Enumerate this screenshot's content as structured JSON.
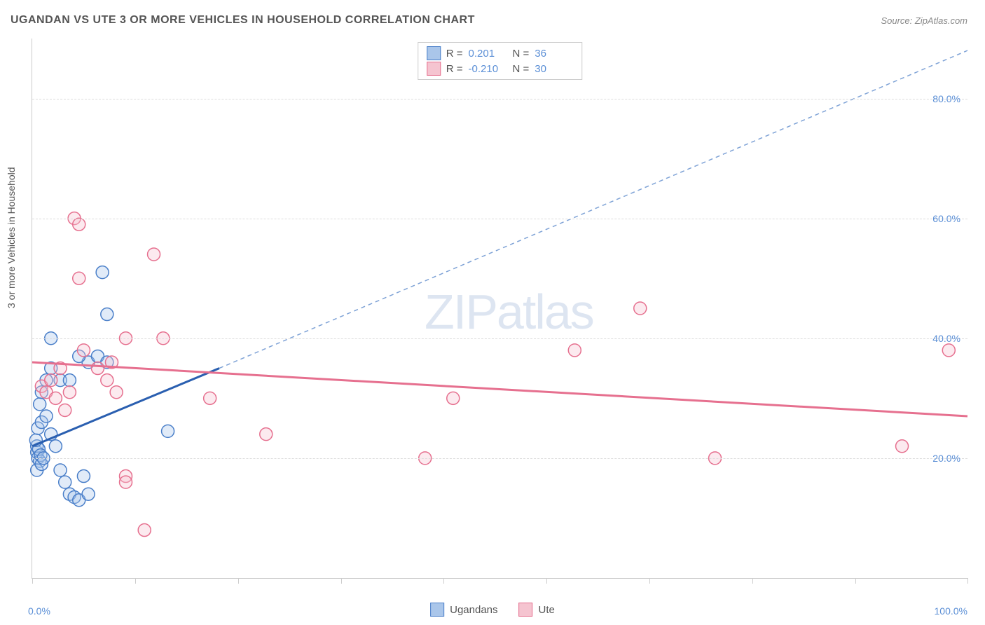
{
  "title": "UGANDAN VS UTE 3 OR MORE VEHICLES IN HOUSEHOLD CORRELATION CHART",
  "source": "Source: ZipAtlas.com",
  "y_axis_label": "3 or more Vehicles in Household",
  "watermark_a": "ZIP",
  "watermark_b": "atlas",
  "chart": {
    "type": "scatter",
    "background_color": "#ffffff",
    "grid_color": "#dddddd",
    "axis_color": "#cccccc",
    "tick_label_color": "#5b8fd6",
    "label_color": "#555555",
    "title_fontsize": 16,
    "label_fontsize": 14,
    "tick_fontsize": 14,
    "watermark_color": "#c8d4e8",
    "xlim": [
      0,
      100
    ],
    "ylim": [
      0,
      90
    ],
    "x_ticks": [
      0,
      11,
      22,
      33,
      44,
      55,
      66,
      77,
      88,
      100
    ],
    "x_tick_labels": {
      "0": "0.0%",
      "100": "100.0%"
    },
    "y_ticks": [
      20,
      40,
      60,
      80
    ],
    "y_tick_labels": [
      "20.0%",
      "40.0%",
      "60.0%",
      "80.0%"
    ],
    "marker_radius": 9,
    "marker_stroke_width": 1.5,
    "marker_fill_opacity": 0.35,
    "trendline_width": 3
  },
  "series": [
    {
      "name": "Ugandans",
      "fill": "#aac6ea",
      "stroke": "#4a7fc9",
      "trend_stroke": "#2a5fb0",
      "trend_dash_stroke": "#7ea2d6",
      "r_label": "R =",
      "r_value": "0.201",
      "n_label": "N =",
      "n_value": "36",
      "trendline": {
        "x1": 0,
        "y1": 22,
        "x2": 20,
        "y2": 35
      },
      "trendline_dash": {
        "x1": 20,
        "y1": 35,
        "x2": 100,
        "y2": 88
      },
      "points": [
        [
          0.5,
          21
        ],
        [
          0.6,
          20
        ],
        [
          0.8,
          19.5
        ],
        [
          0.5,
          22
        ],
        [
          0.7,
          21.5
        ],
        [
          0.9,
          20.5
        ],
        [
          0.5,
          18
        ],
        [
          1,
          19
        ],
        [
          1.2,
          20
        ],
        [
          0.4,
          23
        ],
        [
          0.6,
          25
        ],
        [
          1,
          26
        ],
        [
          1.5,
          27
        ],
        [
          0.8,
          29
        ],
        [
          1,
          31
        ],
        [
          1.5,
          33
        ],
        [
          2,
          24
        ],
        [
          2.5,
          22
        ],
        [
          3,
          18
        ],
        [
          3.5,
          16
        ],
        [
          4,
          14
        ],
        [
          4.5,
          13.5
        ],
        [
          5,
          13
        ],
        [
          5.5,
          17
        ],
        [
          6,
          14
        ],
        [
          6,
          36
        ],
        [
          7,
          37
        ],
        [
          7.5,
          51
        ],
        [
          8,
          44
        ],
        [
          2,
          40
        ],
        [
          2,
          35
        ],
        [
          3,
          33
        ],
        [
          4,
          33
        ],
        [
          5,
          37
        ],
        [
          8,
          36
        ],
        [
          14.5,
          24.5
        ]
      ]
    },
    {
      "name": "Ute",
      "fill": "#f5c4d0",
      "stroke": "#e6708f",
      "trend_stroke": "#e6708f",
      "r_label": "R =",
      "r_value": "-0.210",
      "n_label": "N =",
      "n_value": "30",
      "trendline": {
        "x1": 0,
        "y1": 36,
        "x2": 100,
        "y2": 27
      },
      "points": [
        [
          1,
          32
        ],
        [
          1.5,
          31
        ],
        [
          2,
          33
        ],
        [
          2.5,
          30
        ],
        [
          3,
          35
        ],
        [
          3.5,
          28
        ],
        [
          4,
          31
        ],
        [
          4.5,
          60
        ],
        [
          5,
          59
        ],
        [
          5,
          50
        ],
        [
          5.5,
          38
        ],
        [
          7,
          35
        ],
        [
          8,
          33
        ],
        [
          8.5,
          36
        ],
        [
          9,
          31
        ],
        [
          10,
          40
        ],
        [
          10,
          17
        ],
        [
          10,
          16
        ],
        [
          12,
          8
        ],
        [
          13,
          54
        ],
        [
          14,
          40
        ],
        [
          19,
          30
        ],
        [
          25,
          24
        ],
        [
          42,
          20
        ],
        [
          45,
          30
        ],
        [
          58,
          38
        ],
        [
          65,
          45
        ],
        [
          73,
          20
        ],
        [
          93,
          22
        ],
        [
          98,
          38
        ]
      ]
    }
  ],
  "bottom_legend": {
    "items": [
      {
        "swatch_fill": "#aac6ea",
        "swatch_stroke": "#4a7fc9",
        "label": "Ugandans"
      },
      {
        "swatch_fill": "#f5c4d0",
        "swatch_stroke": "#e6708f",
        "label": "Ute"
      }
    ]
  }
}
